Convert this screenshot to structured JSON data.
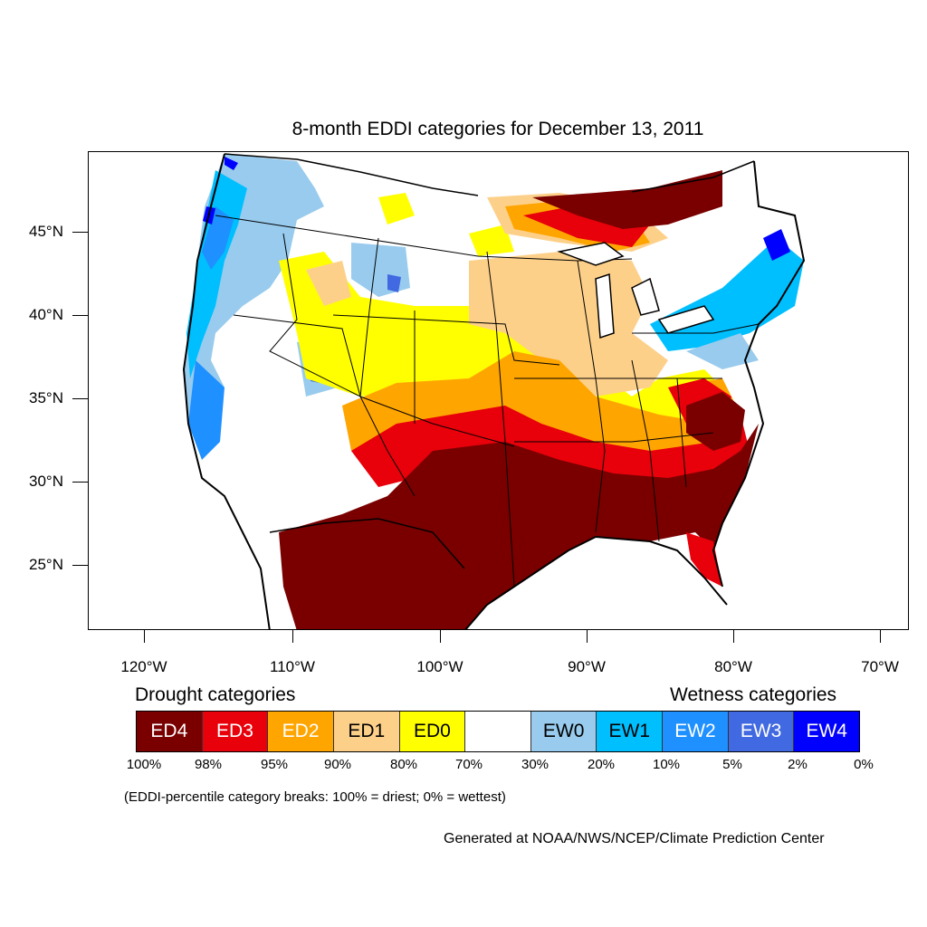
{
  "title": "8-month EDDI categories for December 13, 2011",
  "map": {
    "latitude_labels": [
      "45°N",
      "40°N",
      "35°N",
      "30°N",
      "25°N"
    ],
    "longitude_labels": [
      "120°W",
      "110°W",
      "100°W",
      "90°W",
      "80°W",
      "70°W"
    ]
  },
  "legend": {
    "drought_heading": "Drought categories",
    "wetness_heading": "Wetness categories",
    "categories": [
      {
        "label": "ED4",
        "color": "#7a0000",
        "text_color": "#ffffff"
      },
      {
        "label": "ED3",
        "color": "#e8000b",
        "text_color": "#ffffff"
      },
      {
        "label": "ED2",
        "color": "#ffa500",
        "text_color": "#ffffff"
      },
      {
        "label": "ED1",
        "color": "#fdd08a",
        "text_color": "#000000"
      },
      {
        "label": "ED0",
        "color": "#ffff00",
        "text_color": "#000000"
      },
      {
        "label": "",
        "color": "#ffffff",
        "text_color": "#000000"
      },
      {
        "label": "EW0",
        "color": "#98cbed",
        "text_color": "#000000"
      },
      {
        "label": "EW1",
        "color": "#00bfff",
        "text_color": "#000000"
      },
      {
        "label": "EW2",
        "color": "#1e90ff",
        "text_color": "#ffffff"
      },
      {
        "label": "EW3",
        "color": "#4169e1",
        "text_color": "#ffffff"
      },
      {
        "label": "EW4",
        "color": "#0000ff",
        "text_color": "#ffffff"
      }
    ],
    "breaks": [
      "100%",
      "98%",
      "95%",
      "90%",
      "80%",
      "70%",
      "30%",
      "20%",
      "10%",
      "5%",
      "2%",
      "0%"
    ]
  },
  "breaks_note": "(EDDI-percentile category breaks: 100% = driest; 0% = wettest)",
  "credit": "Generated at NOAA/NWS/NCEP/Climate Prediction Center"
}
